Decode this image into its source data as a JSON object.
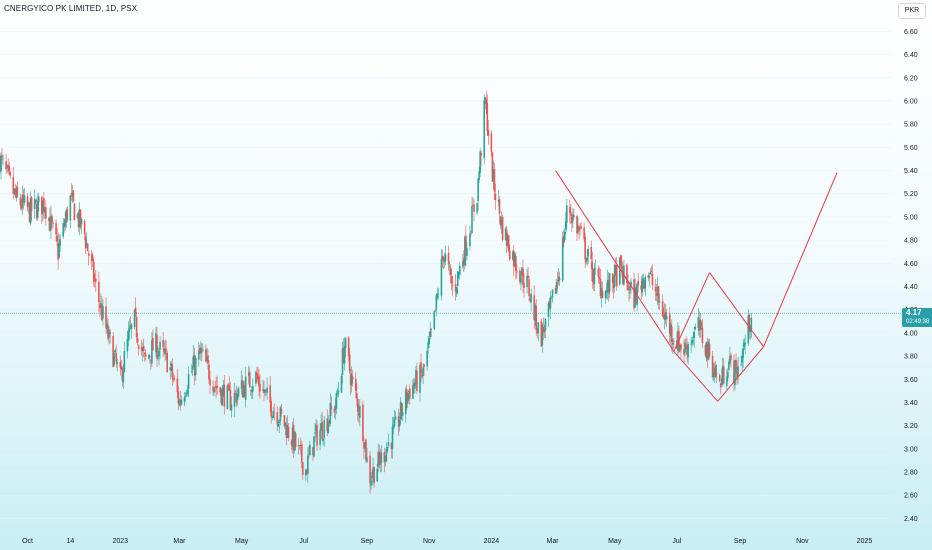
{
  "header": {
    "title": "CNERGYICO PK LIMITED, 1D, PSX",
    "currency": "PKR"
  },
  "price_tag": {
    "price": "4.17",
    "countdown": "02:49:38"
  },
  "colors": {
    "up": "#26a69a",
    "down": "#ef5350",
    "pattern": "#f23645",
    "last_price_line": "#2a9ea8"
  },
  "chart_data": {
    "type": "candlestick",
    "title": "CNERGYICO PK LIMITED, 1D, PSX",
    "xlabel": "",
    "ylabel": "",
    "ylim": [
      2.3,
      6.75
    ],
    "x_range": [
      "2022-09-06",
      "2025-01-28"
    ],
    "y_ticks": [
      "6.60",
      "6.40",
      "6.20",
      "6.00",
      "5.80",
      "5.60",
      "5.40",
      "5.20",
      "5.00",
      "4.80",
      "4.60",
      "4.40",
      "4.20",
      "4.00",
      "3.80",
      "3.60",
      "3.40",
      "3.20",
      "3.00",
      "2.80",
      "2.60",
      "2.40"
    ],
    "x_ticks": [
      {
        "label": "Oct",
        "date": "2022-10-03"
      },
      {
        "label": "14",
        "date": "2022-11-14"
      },
      {
        "label": "2023",
        "date": "2023-01-02"
      },
      {
        "label": "Mar",
        "date": "2023-03-01"
      },
      {
        "label": "May",
        "date": "2023-05-01"
      },
      {
        "label": "Jul",
        "date": "2023-07-01"
      },
      {
        "label": "Sep",
        "date": "2023-09-01"
      },
      {
        "label": "Nov",
        "date": "2023-11-01"
      },
      {
        "label": "2024",
        "date": "2024-01-01"
      },
      {
        "label": "Mar",
        "date": "2024-03-01"
      },
      {
        "label": "May",
        "date": "2024-05-01"
      },
      {
        "label": "Jul",
        "date": "2024-07-01"
      },
      {
        "label": "Sep",
        "date": "2024-09-01"
      },
      {
        "label": "Nov",
        "date": "2024-11-01"
      },
      {
        "label": "2025",
        "date": "2025-01-01"
      }
    ],
    "last_price": 4.17,
    "price_path": [
      [
        "2022-09-06",
        5.5
      ],
      [
        "2022-09-22",
        5.15
      ],
      [
        "2022-10-05",
        5.05
      ],
      [
        "2022-10-20",
        5.12
      ],
      [
        "2022-11-02",
        4.7
      ],
      [
        "2022-11-14",
        5.15
      ],
      [
        "2022-11-28",
        4.85
      ],
      [
        "2022-12-10",
        4.35
      ],
      [
        "2022-12-20",
        4.0
      ],
      [
        "2023-01-02",
        3.6
      ],
      [
        "2023-01-10",
        3.95
      ],
      [
        "2023-01-16",
        4.1
      ],
      [
        "2023-01-26",
        3.75
      ],
      [
        "2023-02-05",
        3.9
      ],
      [
        "2023-02-18",
        3.75
      ],
      [
        "2023-03-01",
        3.4
      ],
      [
        "2023-03-10",
        3.62
      ],
      [
        "2023-03-22",
        3.82
      ],
      [
        "2023-04-05",
        3.55
      ],
      [
        "2023-04-20",
        3.42
      ],
      [
        "2023-05-05",
        3.55
      ],
      [
        "2023-05-15",
        3.62
      ],
      [
        "2023-05-28",
        3.4
      ],
      [
        "2023-06-10",
        3.25
      ],
      [
        "2023-06-22",
        3.05
      ],
      [
        "2023-07-03",
        2.82
      ],
      [
        "2023-07-12",
        3.1
      ],
      [
        "2023-07-22",
        3.22
      ],
      [
        "2023-08-02",
        3.4
      ],
      [
        "2023-08-10",
        3.9
      ],
      [
        "2023-08-18",
        3.55
      ],
      [
        "2023-08-27",
        3.25
      ],
      [
        "2023-09-03",
        2.75
      ],
      [
        "2023-09-14",
        2.9
      ],
      [
        "2023-09-28",
        3.15
      ],
      [
        "2023-10-12",
        3.5
      ],
      [
        "2023-10-26",
        3.65
      ],
      [
        "2023-11-05",
        4.05
      ],
      [
        "2023-11-15",
        4.7
      ],
      [
        "2023-11-25",
        4.35
      ],
      [
        "2023-12-08",
        4.8
      ],
      [
        "2023-12-18",
        5.2
      ],
      [
        "2023-12-26",
        6.0
      ],
      [
        "2024-01-03",
        5.3
      ],
      [
        "2024-01-12",
        4.9
      ],
      [
        "2024-01-25",
        4.6
      ],
      [
        "2024-02-06",
        4.4
      ],
      [
        "2024-02-18",
        3.95
      ],
      [
        "2024-02-28",
        4.2
      ],
      [
        "2024-03-08",
        4.55
      ],
      [
        "2024-03-16",
        5.1
      ],
      [
        "2024-03-28",
        4.85
      ],
      [
        "2024-04-10",
        4.5
      ],
      [
        "2024-04-22",
        4.35
      ],
      [
        "2024-05-06",
        4.55
      ],
      [
        "2024-05-20",
        4.3
      ],
      [
        "2024-06-02",
        4.55
      ],
      [
        "2024-06-14",
        4.25
      ],
      [
        "2024-06-26",
        4.0
      ],
      [
        "2024-07-08",
        3.85
      ],
      [
        "2024-07-22",
        4.05
      ],
      [
        "2024-08-02",
        3.8
      ],
      [
        "2024-08-12",
        3.55
      ],
      [
        "2024-08-20",
        3.75
      ],
      [
        "2024-08-28",
        3.65
      ],
      [
        "2024-09-04",
        3.85
      ],
      [
        "2024-09-12",
        4.17
      ]
    ],
    "pattern_lines": [
      [
        [
          "2024-03-04",
          5.4
        ],
        [
          "2024-06-28",
          3.84
        ]
      ],
      [
        [
          "2024-06-28",
          3.84
        ],
        [
          "2024-08-02",
          4.52
        ]
      ],
      [
        [
          "2024-08-02",
          4.52
        ],
        [
          "2024-09-24",
          3.88
        ]
      ],
      [
        [
          "2024-06-28",
          3.84
        ],
        [
          "2024-08-10",
          3.41
        ]
      ],
      [
        [
          "2024-08-10",
          3.41
        ],
        [
          "2024-09-24",
          3.88
        ]
      ],
      [
        [
          "2024-09-24",
          3.88
        ],
        [
          "2024-12-05",
          5.38
        ]
      ]
    ]
  }
}
